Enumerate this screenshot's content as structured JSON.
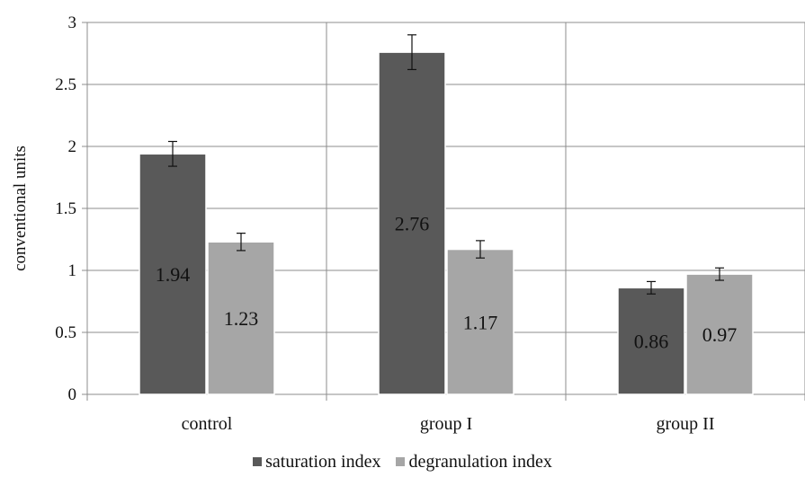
{
  "chart_data": {
    "type": "bar",
    "categories": [
      "control",
      "group I",
      "group II"
    ],
    "series": [
      {
        "name": "saturation index",
        "values": [
          1.94,
          2.76,
          0.86
        ],
        "errors": [
          0.1,
          0.14,
          0.05
        ],
        "labels": [
          "1.94",
          "2.76",
          "0.86"
        ],
        "color": "#595959"
      },
      {
        "name": "degranulation index",
        "values": [
          1.23,
          1.17,
          0.97
        ],
        "errors": [
          0.07,
          0.07,
          0.05
        ],
        "labels": [
          "1.23",
          "1.17",
          "0.97"
        ],
        "color": "#a6a6a6"
      }
    ],
    "ylabel": "conventional units",
    "xlabel": "",
    "ylim": [
      0,
      3
    ],
    "yticks": [
      "0",
      "0.5",
      "1",
      "1.5",
      "2",
      "2.5",
      "3"
    ],
    "grid": true,
    "legend": "bottom"
  }
}
